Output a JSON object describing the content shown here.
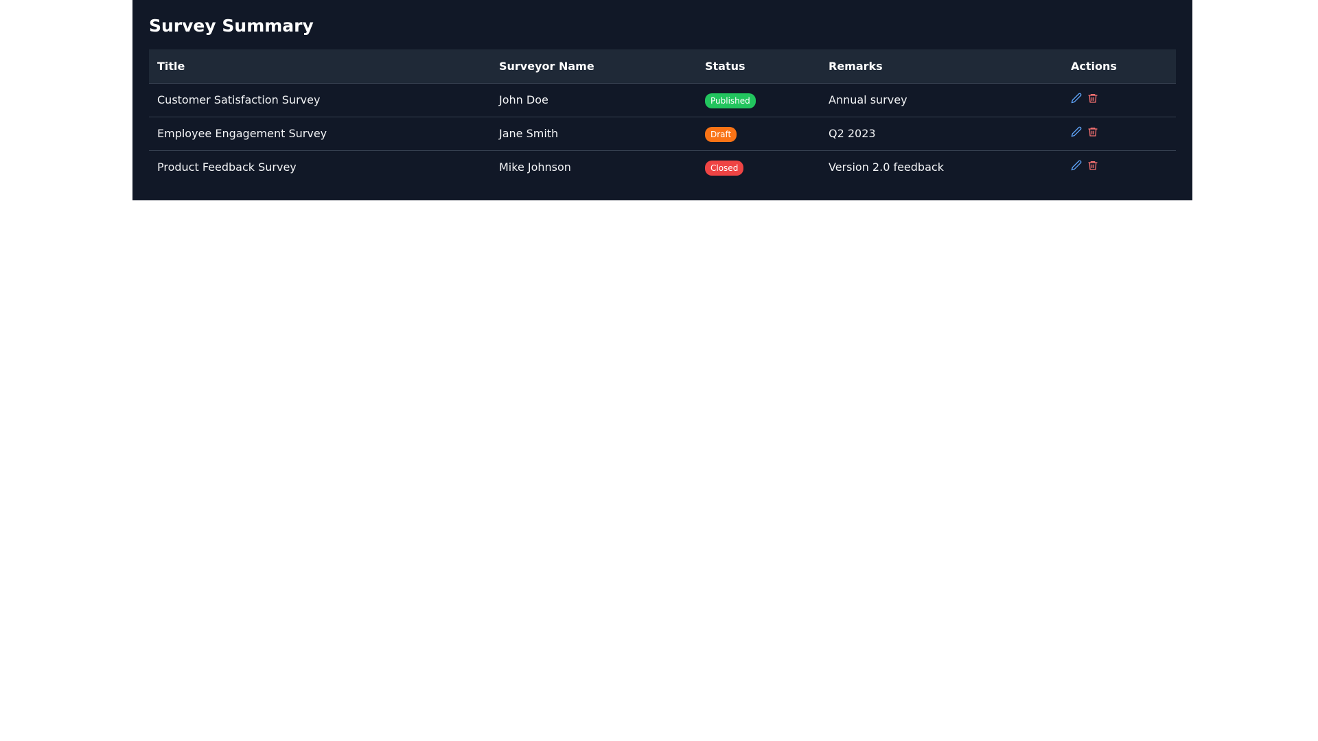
{
  "page": {
    "title": "Survey Summary"
  },
  "table": {
    "headers": [
      "Title",
      "Surveyor Name",
      "Status",
      "Remarks",
      "Actions"
    ],
    "rows": [
      {
        "title": "Customer Satisfaction Survey",
        "surveyor": "John Doe",
        "status": "Published",
        "status_color": "#22c55e",
        "remarks": "Annual survey",
        "actions": [
          "pencil-icon",
          "trash-icon"
        ]
      },
      {
        "title": "Employee Engagement Survey",
        "surveyor": "Jane Smith",
        "status": "Draft",
        "status_color": "#f97316",
        "remarks": "Q2 2023",
        "actions": [
          "pencil-icon",
          "trash-icon"
        ]
      },
      {
        "title": "Product Feedback Survey",
        "surveyor": "Mike Johnson",
        "status": "Closed",
        "status_color": "#ef4444",
        "remarks": "Version 2.0 feedback",
        "actions": [
          "pencil-icon",
          "trash-icon"
        ]
      }
    ]
  },
  "colors": {
    "panel_bg": "#111827",
    "header_bg": "#1f2937",
    "edit_icon": "#60a5fa",
    "delete_icon": "#f87171"
  }
}
